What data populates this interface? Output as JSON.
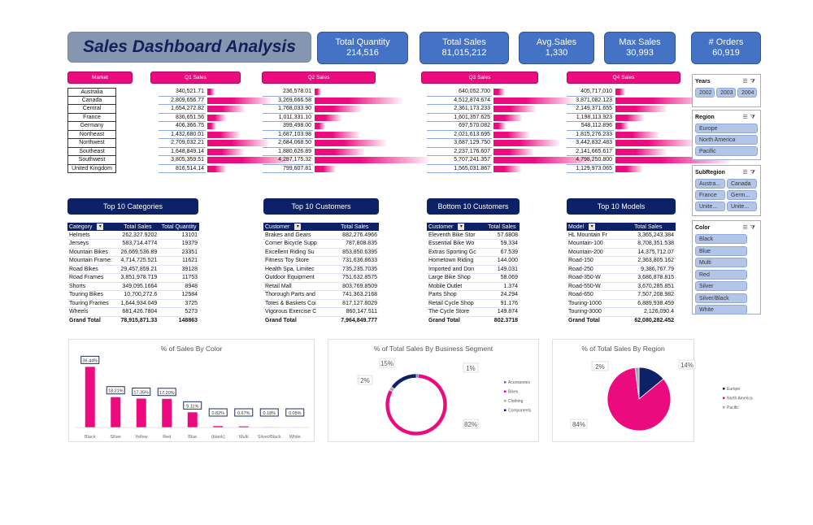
{
  "title": "Sales Dashboard Analysis",
  "kpis": [
    {
      "label": "Total Quantity",
      "value": "214,516"
    },
    {
      "label": "Total Sales",
      "value": "81,015,212"
    },
    {
      "label": "Avg.Sales",
      "value": "1,330"
    },
    {
      "label": "Max Sales",
      "value": "30,993"
    },
    {
      "label": "# Orders",
      "value": "60,919"
    }
  ],
  "quarterly": {
    "market_header": "Market",
    "headers": [
      "Q1 Sales",
      "Q2 Sales",
      "Q3 Sales",
      "Q4 Sales"
    ],
    "markets": [
      "Australia",
      "Canada",
      "Central",
      "France",
      "Germany",
      "Northeast",
      "Northwest",
      "Southeast",
      "Southwest",
      "United Kingdom"
    ],
    "q1": [
      "340,521.71",
      "2,809,656.77",
      "1,654,272.82",
      "836,651.56",
      "406,366.75",
      "1,432,680.01",
      "2,709,032.21",
      "1,648,849.14",
      "3,805,359.51",
      "816,514.14"
    ],
    "q2": [
      "236,578.01",
      "3,269,666.58",
      "1,768,033.90",
      "1,011,331.10",
      "399,498.00",
      "1,687,103.98",
      "2,684,068.50",
      "1,880,626.89",
      "4,287,175.32",
      "799,607.81"
    ],
    "q3": [
      "640,052.700",
      "4,512,874.674",
      "2,361,173.233",
      "1,601,357.625",
      "697,570.082",
      "2,021,613.695",
      "3,687,129.750",
      "2,237,176.607",
      "5,707,241.357",
      "1,565,031.867"
    ],
    "q4": [
      "405,717.010",
      "3,871,082.123",
      "2,149,371.655",
      "1,198,113.923",
      "548,112.896",
      "1,815,276.233",
      "3,442,832.483",
      "2,141,665.617",
      "4,798,250.800",
      "1,129,973.065"
    ]
  },
  "top_categories": {
    "title": "Top 10 Categories",
    "columns": [
      "Category",
      "Total Sales",
      "Total Quantity"
    ],
    "rows": [
      [
        "Helmets",
        "262,327.9202",
        "13101"
      ],
      [
        "Jerseys",
        "583,714.4774",
        "19379"
      ],
      [
        "Mountain Bikes",
        "26,669,536.89",
        "23351"
      ],
      [
        "Mountain Frame:",
        "4,714,725.521",
        "11621"
      ],
      [
        "Road Bikes",
        "29,457,859.21",
        "39128"
      ],
      [
        "Road Frames",
        "3,851,978.719",
        "11753"
      ],
      [
        "Shorts",
        "349,095.1664",
        "8948"
      ],
      [
        "Touring Bikes",
        "10,700,272.6",
        "12584"
      ],
      [
        "Touring Frames",
        "1,644,934.049",
        "3725"
      ],
      [
        "Wheels",
        "681,426.7804",
        "5273"
      ]
    ],
    "total": [
      "Grand Total",
      "78,915,871.33",
      "148863"
    ]
  },
  "top_customers": {
    "title": "Top 10 Customers",
    "columns": [
      "Customer",
      "Total Sales"
    ],
    "rows": [
      [
        "Brakes and Gears",
        "882,276.4966"
      ],
      [
        "Corner Bicycle Supp",
        "787,808.835"
      ],
      [
        "Excellent Riding Su",
        "853,850.6395"
      ],
      [
        "Fitness Toy Store",
        "731,636.8633"
      ],
      [
        "Health Spa, Limitec",
        "735,235.7035"
      ],
      [
        "Outdoor Equipment",
        "751,632.8575"
      ],
      [
        "Retail Mall",
        "803,769.8509"
      ],
      [
        "Thorough Parts and",
        "741,363.2168"
      ],
      [
        "Totes & Baskets Coi",
        "817,127.8029"
      ],
      [
        "Vigorous Exercise C",
        "860,147.511"
      ]
    ],
    "total": [
      "Grand Total",
      "7,964,849.777"
    ]
  },
  "bottom_customers": {
    "title": "Bottom 10 Customers",
    "columns": [
      "Customer",
      "Total Sales"
    ],
    "rows": [
      [
        "Eleventh Bike Stor",
        "57.6808"
      ],
      [
        "Essential Bike Wo",
        "59.334"
      ],
      [
        "Extras Sporting Gc",
        "67.539"
      ],
      [
        "Hometown Riding",
        "144.000"
      ],
      [
        "Imported and Don",
        "149.031"
      ],
      [
        "Large Bike Shop",
        "58.069"
      ],
      [
        "Mobile Outlet",
        "1.374"
      ],
      [
        "Parts Shop",
        "24.294"
      ],
      [
        "Retail Cycle Shop",
        "91.176"
      ],
      [
        "The Cycle Store",
        "149.874"
      ]
    ],
    "total": [
      "Grand Total",
      "802.3718"
    ]
  },
  "top_models": {
    "title": "Top 10 Models",
    "columns": [
      "Model",
      "Total Sales"
    ],
    "rows": [
      [
        "HL Mountain Fr",
        "3,365,243.384"
      ],
      [
        "Mountain-100",
        "8,708,351.538"
      ],
      [
        "Mountain-200",
        "14,375,712.07"
      ],
      [
        "Road-150",
        "2,363,805.162"
      ],
      [
        "Road-250",
        "9,386,767.79"
      ],
      [
        "Road-350-W",
        "3,686,878.815"
      ],
      [
        "Road-550-W",
        "3,670,285.851"
      ],
      [
        "Road-650",
        "7,507,208.982"
      ],
      [
        "Touring-1000",
        "6,889,938.459"
      ],
      [
        "Touring-3000",
        "2,126,090.4"
      ]
    ],
    "total": [
      "Grand Total",
      "62,080,282.452"
    ]
  },
  "slicers": {
    "years": {
      "title": "Years",
      "items": [
        "2002",
        "2003",
        "2004"
      ]
    },
    "region": {
      "title": "Region",
      "items": [
        "Europe",
        "North America",
        "Pacific"
      ]
    },
    "subregion": {
      "title": "SubRegion",
      "items": [
        "Austra...",
        "Canada",
        "France",
        "Germ...",
        "Unite...",
        "Unite..."
      ]
    },
    "color": {
      "title": "Color",
      "items": [
        "Black",
        "Blue",
        "Multi",
        "Red",
        "Silver",
        "Silver/Black",
        "White"
      ]
    },
    "icons": {
      "multiselect": "multi-select-icon",
      "clear": "clear-filter-icon"
    }
  },
  "colors": {
    "pink": "#ec0a7f",
    "navy": "#0d2167",
    "kpi_blue": "#4472c4",
    "grey": "#a6a6a6"
  },
  "chart_data": [
    {
      "type": "bar",
      "title": "% of Sales By Color",
      "categories": [
        "Black",
        "Silver",
        "Yellow",
        "Red",
        "Blue",
        "(blank)",
        "Multi",
        "Silver/Black",
        "White"
      ],
      "values": [
        36.44,
        18.21,
        17.35,
        17.2,
        9.11,
        0.82,
        0.67,
        0.18,
        0.05
      ],
      "labels": [
        "36.44%",
        "18.21%",
        "17.35%",
        "17.20%",
        "9.11%",
        "0.82%",
        "0.67%",
        "0.18%",
        "0.05%"
      ],
      "xlabel": "",
      "ylabel": "",
      "ylim": [
        0,
        40
      ],
      "grid": false,
      "legend": "none"
    },
    {
      "type": "pie",
      "variant": "doughnut",
      "title": "% of Total Sales By Business Segment",
      "categories": [
        "Accessories",
        "Bikes",
        "Clothing",
        "Components"
      ],
      "values": [
        1,
        82,
        2,
        15
      ],
      "labels": [
        "1%",
        "82%",
        "2%",
        "15%"
      ],
      "legend": "right"
    },
    {
      "type": "pie",
      "title": "% of Total Sales By Region",
      "categories": [
        "Europe",
        "North America",
        "Pacific"
      ],
      "values": [
        14,
        84,
        2
      ],
      "labels": [
        "14%",
        "84%",
        "2%"
      ],
      "legend": "right"
    }
  ]
}
